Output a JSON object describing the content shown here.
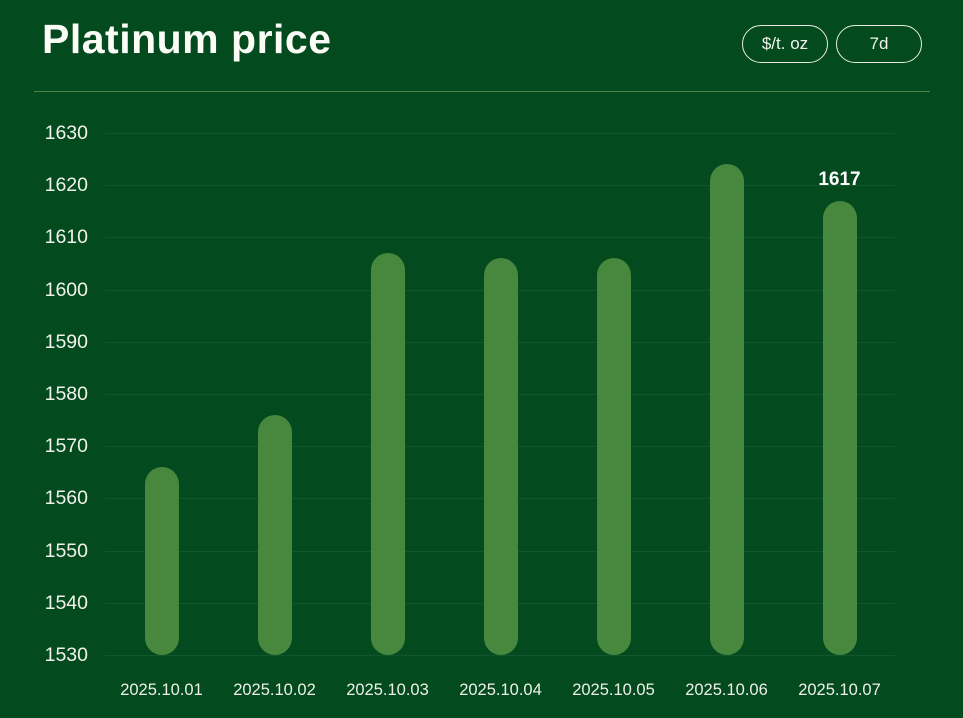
{
  "header": {
    "title": "Platinum price",
    "unit_button": "$/t. oz",
    "range_button": "7d"
  },
  "colors": {
    "background": "#034a1f",
    "bar": "#47873e",
    "text": "#f6f7f1",
    "divider": "#55823f",
    "gridline": "rgba(255,255,255,0.065)"
  },
  "chart_data": {
    "type": "bar",
    "title": "Platinum price",
    "unit": "$/t. oz",
    "range": "7d",
    "categories": [
      "2025.10.01",
      "2025.10.02",
      "2025.10.03",
      "2025.10.04",
      "2025.10.05",
      "2025.10.06",
      "2025.10.07"
    ],
    "values": [
      1566,
      1576,
      1607,
      1606,
      1606,
      1624,
      1617
    ],
    "value_labels": [
      null,
      null,
      null,
      null,
      null,
      null,
      "1617"
    ],
    "ylim": [
      1530,
      1630
    ],
    "ytick_step": 10,
    "yticks": [
      1530,
      1540,
      1550,
      1560,
      1570,
      1580,
      1590,
      1600,
      1610,
      1620,
      1630
    ],
    "grid": true,
    "legend": "none",
    "bar_color": "#47873e"
  }
}
